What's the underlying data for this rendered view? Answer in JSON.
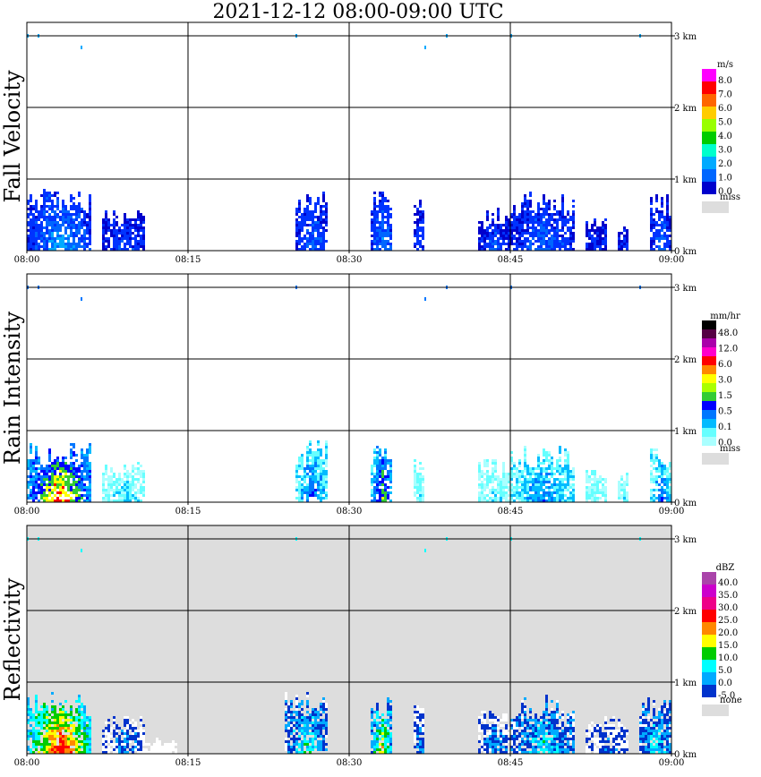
{
  "chart_data": {
    "type": "heatmap",
    "title": "2021-12-12   08:00-09:00 UTC",
    "x_tick_labels": [
      "08:00",
      "08:15",
      "08:30",
      "08:45",
      "09:00"
    ],
    "y_tick_labels": [
      "0 km",
      "1 km",
      "2 km",
      "3 km"
    ],
    "panels": [
      {
        "name": "Fall Velocity",
        "unit": "m/s",
        "colorbar_labels": [
          "8.0",
          "7.0",
          "6.0",
          "5.0",
          "4.0",
          "3.0",
          "2.0",
          "1.0",
          "0.0"
        ],
        "colorbar_colors": [
          "#ff00ff",
          "#ff0000",
          "#ff6600",
          "#ffcc00",
          "#99ff00",
          "#00cc00",
          "#00ffcc",
          "#00aaff",
          "#0066ff",
          "#0000cc"
        ],
        "missing_label": "miss",
        "missing_color": "#dddddd",
        "panel_background": "#ffffff",
        "echo_colors": [
          "#0000cc",
          "#0033ff",
          "#0066ff",
          "#00aaff",
          "#00ffcc"
        ],
        "echo_bands": [
          {
            "from": "08:00",
            "to": "08:06",
            "top_km": 0.85,
            "intensity": 0.7
          },
          {
            "from": "08:07",
            "to": "08:11",
            "top_km": 0.55,
            "intensity": 0.4
          },
          {
            "from": "08:25",
            "to": "08:28",
            "top_km": 0.85,
            "intensity": 0.5
          },
          {
            "from": "08:32",
            "to": "08:34",
            "top_km": 0.85,
            "intensity": 0.6
          },
          {
            "from": "08:36",
            "to": "08:37",
            "top_km": 0.7,
            "intensity": 0.4
          },
          {
            "from": "08:42",
            "to": "08:45",
            "top_km": 0.6,
            "intensity": 0.4
          },
          {
            "from": "08:45",
            "to": "08:51",
            "top_km": 0.8,
            "intensity": 0.5
          },
          {
            "from": "08:52",
            "to": "08:54",
            "top_km": 0.5,
            "intensity": 0.3
          },
          {
            "from": "08:55",
            "to": "08:56",
            "top_km": 0.45,
            "intensity": 0.3
          },
          {
            "from": "08:58",
            "to": "09:00",
            "top_km": 0.8,
            "intensity": 0.5
          }
        ]
      },
      {
        "name": "Rain Intensity",
        "unit": "mm/hr",
        "colorbar_labels": [
          "48.0",
          "12.0",
          "6.0",
          "3.0",
          "1.5",
          "0.5",
          "0.1",
          "0.0"
        ],
        "colorbar_colors": [
          "#000000",
          "#550044",
          "#aa00aa",
          "#ff00cc",
          "#ff0000",
          "#ff8800",
          "#ffff00",
          "#aaff00",
          "#33cc33",
          "#0000ff",
          "#0077ff",
          "#00bbff",
          "#66ffff",
          "#aaffff"
        ],
        "missing_label": "miss",
        "missing_color": "#dddddd",
        "panel_background": "#ffffff",
        "echo_colors": [
          "#aaffff",
          "#66ffff",
          "#00bbff",
          "#0077ff",
          "#0000ff",
          "#33cc33",
          "#ffff00",
          "#ff0000"
        ],
        "echo_bands": [
          {
            "from": "08:00",
            "to": "08:06",
            "top_km": 0.85,
            "intensity": 1.0
          },
          {
            "from": "08:07",
            "to": "08:11",
            "top_km": 0.55,
            "intensity": 0.25
          },
          {
            "from": "08:25",
            "to": "08:28",
            "top_km": 0.85,
            "intensity": 0.5
          },
          {
            "from": "08:32",
            "to": "08:34",
            "top_km": 0.85,
            "intensity": 0.75
          },
          {
            "from": "08:36",
            "to": "08:37",
            "top_km": 0.7,
            "intensity": 0.2
          },
          {
            "from": "08:42",
            "to": "08:45",
            "top_km": 0.6,
            "intensity": 0.2
          },
          {
            "from": "08:45",
            "to": "08:51",
            "top_km": 0.8,
            "intensity": 0.45
          },
          {
            "from": "08:52",
            "to": "08:54",
            "top_km": 0.5,
            "intensity": 0.2
          },
          {
            "from": "08:55",
            "to": "08:56",
            "top_km": 0.45,
            "intensity": 0.2
          },
          {
            "from": "08:58",
            "to": "09:00",
            "top_km": 0.8,
            "intensity": 0.45
          }
        ]
      },
      {
        "name": "Reflectivity",
        "unit": "dBZ",
        "colorbar_labels": [
          "40.0",
          "35.0",
          "30.0",
          "25.0",
          "20.0",
          "15.0",
          "10.0",
          "5.0",
          "0.0",
          "-5.0"
        ],
        "colorbar_colors": [
          "#aa44aa",
          "#cc00cc",
          "#ee0088",
          "#ff0000",
          "#ff8800",
          "#ffff00",
          "#00cc00",
          "#00ffff",
          "#00aaff",
          "#0033cc"
        ],
        "missing_label": "none",
        "missing_color": "#dddddd",
        "panel_background": "#dddddd",
        "echo_colors": [
          "#ffffff",
          "#0033cc",
          "#00aaff",
          "#00ffff",
          "#00cc00",
          "#ffff00",
          "#ff8800",
          "#ff0000"
        ],
        "echo_bands": [
          {
            "from": "08:00",
            "to": "08:06",
            "top_km": 0.85,
            "intensity": 1.0
          },
          {
            "from": "08:07",
            "to": "08:11",
            "top_km": 0.55,
            "intensity": 0.25
          },
          {
            "from": "08:11",
            "to": "08:14",
            "top_km": 0.2,
            "intensity": 0.0
          },
          {
            "from": "08:24",
            "to": "08:28",
            "top_km": 0.85,
            "intensity": 0.5
          },
          {
            "from": "08:32",
            "to": "08:34",
            "top_km": 0.85,
            "intensity": 0.7
          },
          {
            "from": "08:36",
            "to": "08:37",
            "top_km": 0.7,
            "intensity": 0.3
          },
          {
            "from": "08:42",
            "to": "08:45",
            "top_km": 0.6,
            "intensity": 0.3
          },
          {
            "from": "08:45",
            "to": "08:51",
            "top_km": 0.8,
            "intensity": 0.45
          },
          {
            "from": "08:52",
            "to": "08:56",
            "top_km": 0.5,
            "intensity": 0.2
          },
          {
            "from": "08:57",
            "to": "09:00",
            "top_km": 0.8,
            "intensity": 0.45
          }
        ]
      }
    ]
  }
}
